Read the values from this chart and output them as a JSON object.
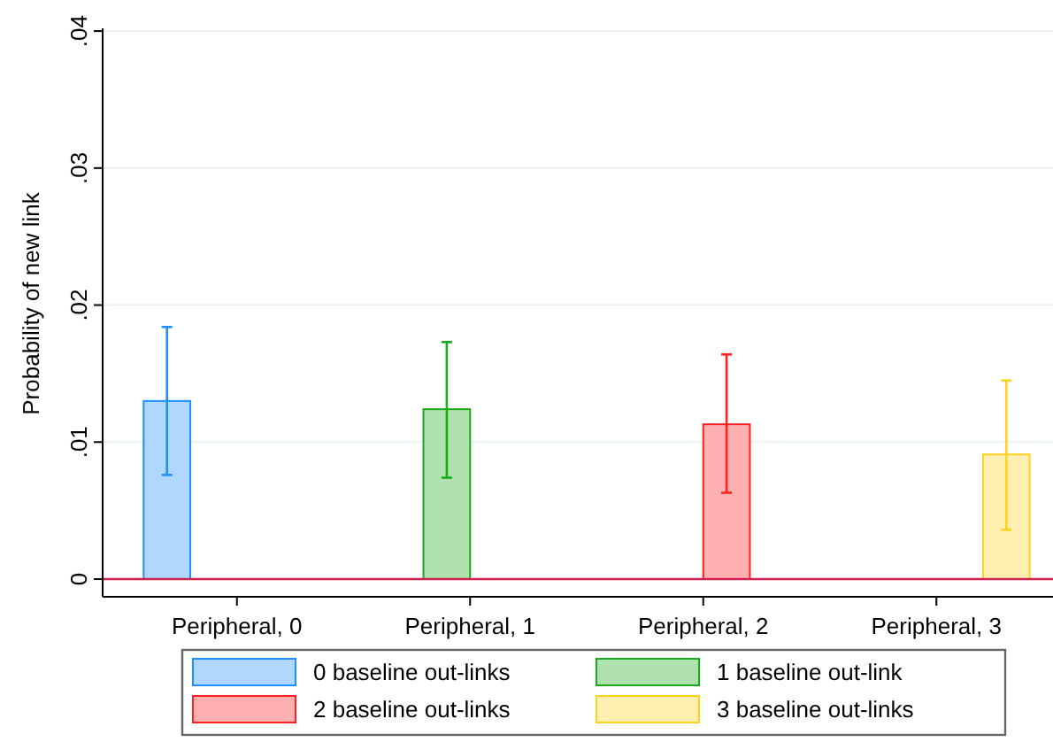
{
  "chart_data": {
    "type": "bar",
    "ylabel": "Probability of new link",
    "categories": [
      "Peripheral, 0",
      "Peripheral, 1",
      "Peripheral, 2",
      "Peripheral, 3"
    ],
    "series": [
      {
        "name": "0 baseline out-links",
        "color": "#1e90ff",
        "values": [
          0.013,
          null,
          null,
          null
        ],
        "errors": [
          [
            0.0076,
            0.0184
          ],
          null,
          null,
          null
        ]
      },
      {
        "name": "1 baseline out-link",
        "color": "#1aab1a",
        "values": [
          null,
          0.0124,
          null,
          null
        ],
        "errors": [
          null,
          [
            0.0074,
            0.0173
          ],
          null,
          null
        ]
      },
      {
        "name": "2 baseline out-links",
        "color": "#ff2020",
        "values": [
          null,
          null,
          0.0113,
          null
        ],
        "errors": [
          null,
          null,
          [
            0.0063,
            0.0164
          ],
          null
        ]
      },
      {
        "name": "3 baseline out-links",
        "color": "#ffd21e",
        "values": [
          null,
          null,
          null,
          0.0091
        ],
        "errors": [
          null,
          null,
          null,
          [
            0.0036,
            0.0145
          ]
        ]
      }
    ],
    "ylim": [
      0,
      0.0402
    ],
    "yticks": [
      {
        "value": 0,
        "label": "0"
      },
      {
        "value": 0.01,
        "label": ".01"
      },
      {
        "value": 0.02,
        "label": ".02"
      },
      {
        "value": 0.03,
        "label": ".03"
      },
      {
        "value": 0.04,
        "label": ".04"
      }
    ],
    "grid": "y",
    "legend": "bottom",
    "ref_lines": [
      {
        "axis": "y",
        "value": 0,
        "color": "#d02050"
      }
    ]
  }
}
